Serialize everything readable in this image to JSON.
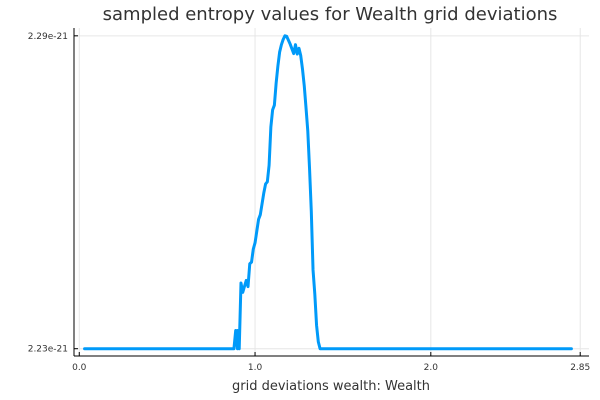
{
  "chart_data": {
    "type": "line",
    "title": "sampled entropy values for Wealth grid deviations",
    "xlabel": "grid deviations wealth: Wealth",
    "ylabel": "",
    "xlim": [
      -0.03,
      2.9
    ],
    "ylim": [
      2.2286e-21,
      2.2915e-21
    ],
    "grid": true,
    "legend": "none",
    "x_ticks": [
      {
        "value": 0.0,
        "label": "0.0"
      },
      {
        "value": 1.0,
        "label": "1.0"
      },
      {
        "value": 2.0,
        "label": "2.0"
      },
      {
        "value": 2.85,
        "label": "2.85"
      }
    ],
    "y_ticks": [
      {
        "value": 2.23e-21,
        "label": "2.23e-21"
      },
      {
        "value": 2.29e-21,
        "label": "2.29e-21"
      }
    ],
    "series": [
      {
        "color": "#009af9",
        "x": [
          0.03,
          0.3,
          0.6,
          0.8,
          0.88,
          0.89,
          0.9,
          0.9,
          0.91,
          0.92,
          0.93,
          0.95,
          0.96,
          0.97,
          0.98,
          0.99,
          1.0,
          1.02,
          1.03,
          1.05,
          1.06,
          1.07,
          1.08,
          1.09,
          1.1,
          1.11,
          1.12,
          1.13,
          1.14,
          1.15,
          1.16,
          1.17,
          1.18,
          1.2,
          1.22,
          1.23,
          1.24,
          1.25,
          1.26,
          1.27,
          1.28,
          1.29,
          1.3,
          1.31,
          1.32,
          1.33,
          1.34,
          1.35,
          1.36,
          1.37,
          1.38,
          1.4,
          1.6,
          2.0,
          2.4,
          2.8
        ],
        "y": [
          2.23e-21,
          2.23e-21,
          2.23e-21,
          2.23e-21,
          2.23e-21,
          2.2335e-21,
          2.23e-21,
          2.2335e-21,
          2.23e-21,
          2.2426e-21,
          2.2408e-21,
          2.2431e-21,
          2.2419e-21,
          2.2463e-21,
          2.2466e-21,
          2.2491e-21,
          2.2503e-21,
          2.2548e-21,
          2.2557e-21,
          2.2599e-21,
          2.2616e-21,
          2.262e-21,
          2.2652e-21,
          2.2725e-21,
          2.2758e-21,
          2.2767e-21,
          2.2809e-21,
          2.2842e-21,
          2.2869e-21,
          2.2883e-21,
          2.2893e-21,
          2.29e-21,
          2.2899e-21,
          2.2884e-21,
          2.2866e-21,
          2.2883e-21,
          2.2865e-21,
          2.2876e-21,
          2.2862e-21,
          2.2836e-21,
          2.2804e-21,
          2.2762e-21,
          2.2718e-21,
          2.2646e-21,
          2.2564e-21,
          2.2451e-21,
          2.2405e-21,
          2.2345e-21,
          2.2313e-21,
          2.23e-21,
          2.23e-21,
          2.23e-21,
          2.23e-21,
          2.23e-21,
          2.23e-21,
          2.23e-21
        ]
      }
    ]
  }
}
